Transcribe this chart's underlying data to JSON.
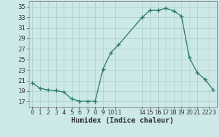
{
  "x": [
    0,
    1,
    2,
    3,
    4,
    5,
    6,
    7,
    8,
    9,
    10,
    11,
    14,
    15,
    16,
    17,
    18,
    19,
    20,
    21,
    22,
    23
  ],
  "y": [
    20.5,
    19.5,
    19.2,
    19.1,
    18.8,
    17.5,
    17.1,
    17.1,
    17.1,
    23.2,
    26.3,
    27.8,
    33.0,
    34.3,
    34.3,
    34.7,
    34.2,
    33.2,
    25.3,
    22.5,
    21.2,
    19.3
  ],
  "line_color": "#2e7d6e",
  "marker": "+",
  "bg_color": "#cce8e8",
  "grid_color": "#b0cfcf",
  "xlabel": "Humidex (Indice chaleur)",
  "ylim": [
    16,
    36
  ],
  "xlim": [
    -0.5,
    23.5
  ],
  "yticks": [
    17,
    19,
    21,
    23,
    25,
    27,
    29,
    31,
    33,
    35
  ],
  "tick_fontsize": 6.5,
  "label_fontsize": 7.5,
  "line_width": 1.0,
  "marker_size": 4
}
